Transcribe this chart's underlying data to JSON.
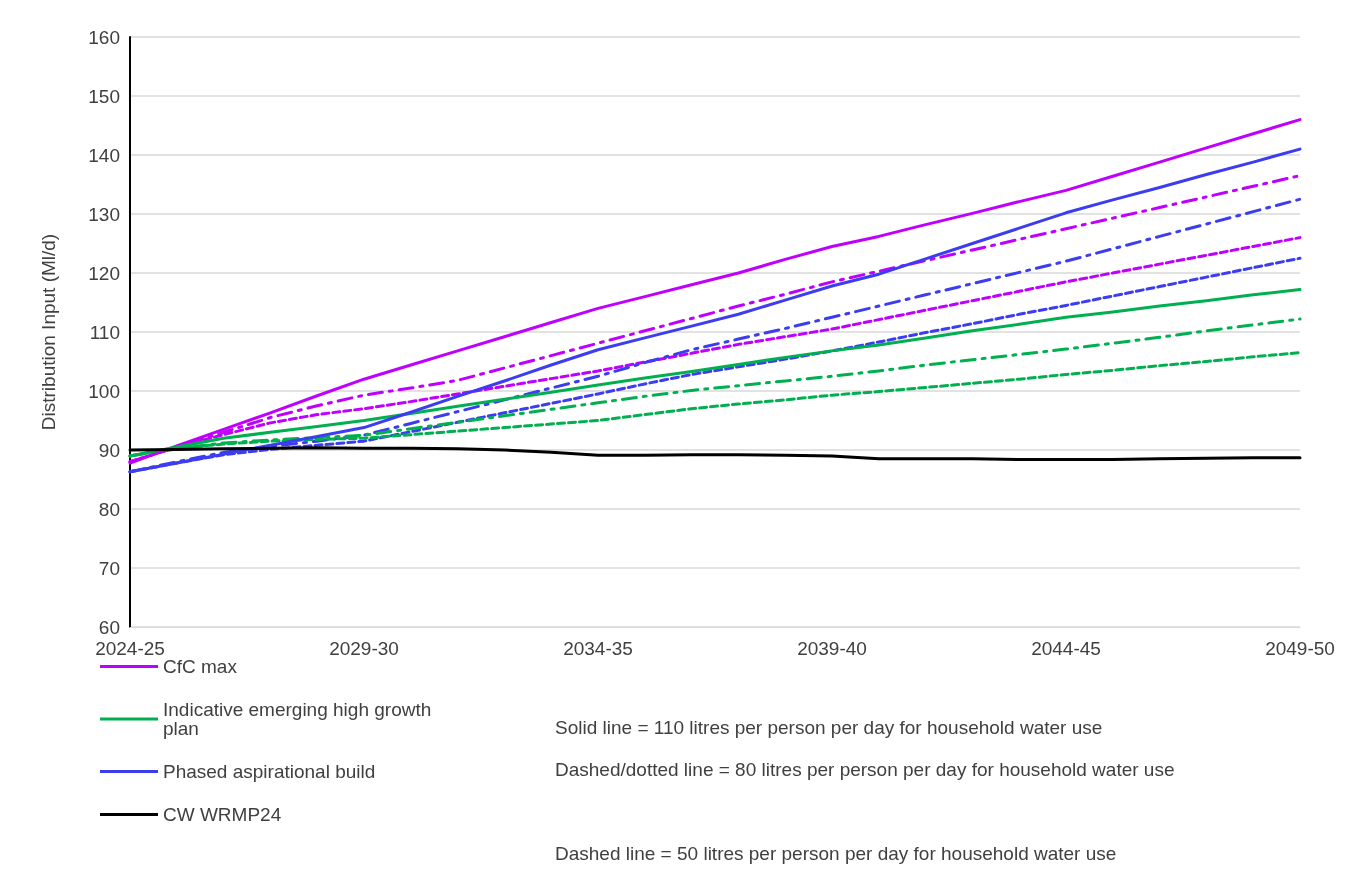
{
  "chart_data": {
    "type": "line",
    "ylabel": "Distribution Input (Ml/d)",
    "categories": [
      "2024-25",
      null,
      null,
      null,
      null,
      "2029-30",
      null,
      null,
      null,
      null,
      "2034-35",
      null,
      null,
      null,
      null,
      "2039-40",
      null,
      null,
      null,
      null,
      "2044-45",
      null,
      null,
      null,
      null,
      "2049-50"
    ],
    "ylim": [
      60,
      160
    ],
    "yticks": [
      60,
      70,
      80,
      90,
      100,
      110,
      120,
      130,
      140,
      150,
      160
    ],
    "grid": "y",
    "legend": "bottom left",
    "marker": "none",
    "series": [
      {
        "name": "CfC max",
        "color": "#bf00ff",
        "line_style": "solid",
        "values": [
          87.8,
          90.7,
          93.5,
          96.3,
          99.2,
          102,
          104.4,
          106.8,
          109.2,
          111.6,
          114,
          116,
          118,
          120,
          122.3,
          124.5,
          126.2,
          128.2,
          130.1,
          132.1,
          134,
          136.4,
          138.8,
          141.2,
          143.6,
          146
        ]
      },
      {
        "name": "Indicative emerging high growth plan",
        "color": "#00b050",
        "line_style": "solid",
        "values": [
          89,
          90.5,
          92,
          93,
          94,
          95,
          96.2,
          97.4,
          98.6,
          99.8,
          101,
          102.2,
          103.3,
          104.5,
          105.7,
          106.8,
          107.8,
          109,
          110.2,
          111.3,
          112.5,
          113.4,
          114.4,
          115.3,
          116.3,
          117.2
        ]
      },
      {
        "name": "Phased aspirational build",
        "color": "#3c3cf0",
        "line_style": "solid",
        "values": [
          86.3,
          87.8,
          89.3,
          90.8,
          92.3,
          93.8,
          96.4,
          99.1,
          101.7,
          104.4,
          107,
          109,
          111,
          113,
          115.4,
          117.8,
          119.8,
          122.4,
          125,
          127.6,
          130.2,
          132.4,
          134.5,
          136.7,
          138.8,
          141
        ]
      },
      {
        "name": "CW WRMP24",
        "color": "#000000",
        "line_style": "solid",
        "values": [
          90,
          90.1,
          90.2,
          90.3,
          90.4,
          90.3,
          90.3,
          90.2,
          90,
          89.6,
          89.1,
          89.1,
          89.2,
          89.2,
          89.1,
          89,
          88.5,
          88.5,
          88.5,
          88.4,
          88.4,
          88.4,
          88.5,
          88.6,
          88.7,
          88.7
        ]
      },
      {
        "color": "#bf00ff",
        "line_style": "dotted",
        "values": [
          88,
          90.5,
          93,
          95.5,
          97.5,
          99.3,
          100.5,
          101.8,
          103.9,
          106,
          108.1,
          110.2,
          112.3,
          114.4,
          116.4,
          118.5,
          120.3,
          122.1,
          123.9,
          125.7,
          127.5,
          129.3,
          131.1,
          132.9,
          134.7,
          136.5
        ]
      },
      {
        "color": "#bf00ff",
        "line_style": "dashed",
        "values": [
          88,
          90.5,
          92.6,
          94.6,
          96,
          97,
          98.2,
          99.5,
          100.8,
          102.1,
          103.4,
          104.9,
          106.4,
          107.9,
          109.2,
          110.5,
          112.1,
          113.7,
          115.3,
          116.9,
          118.5,
          120,
          121.5,
          123,
          124.5,
          126
        ]
      },
      {
        "color": "#3c3cf0",
        "line_style": "dotted",
        "values": [
          86.3,
          88,
          89.6,
          90.6,
          91.5,
          92.5,
          94.5,
          96.5,
          98.5,
          100.5,
          102.5,
          104.8,
          107,
          108.8,
          110.6,
          112.5,
          114.4,
          116.3,
          118.2,
          120.1,
          122,
          124.1,
          126.2,
          128.3,
          130.4,
          132.5
        ]
      },
      {
        "color": "#3c3cf0",
        "line_style": "dashed",
        "values": [
          86.3,
          87.8,
          89.2,
          90.1,
          90.8,
          91.5,
          93.1,
          94.7,
          96.3,
          97.9,
          99.5,
          101.2,
          102.8,
          104.1,
          105.4,
          106.8,
          108.3,
          109.9,
          111.4,
          113,
          114.5,
          116.1,
          117.7,
          119.3,
          120.9,
          122.5
        ]
      },
      {
        "color": "#00b050",
        "line_style": "dotted",
        "values": [
          89,
          90.2,
          91.2,
          91.7,
          92.1,
          92.5,
          93.6,
          94.7,
          95.8,
          96.9,
          98,
          99.1,
          100.1,
          100.9,
          101.7,
          102.5,
          103.4,
          104.4,
          105.3,
          106.2,
          107.1,
          108.1,
          109.1,
          110.2,
          111.2,
          112.2
        ]
      },
      {
        "color": "#00b050",
        "line_style": "dashed",
        "values": [
          89,
          90.3,
          91,
          91.5,
          91.8,
          92,
          92.6,
          93.2,
          93.8,
          94.4,
          95,
          96,
          97,
          97.8,
          98.5,
          99.3,
          99.9,
          100.6,
          101.3,
          102,
          102.8,
          103.5,
          104.3,
          105,
          105.8,
          106.5
        ]
      }
    ],
    "annotations": [
      "Solid line = 110 litres per person per day for household water use",
      "Dashed/dotted line = 80 litres per person per day for household water use",
      "Dashed line = 50 litres per person per day for household water use"
    ]
  }
}
